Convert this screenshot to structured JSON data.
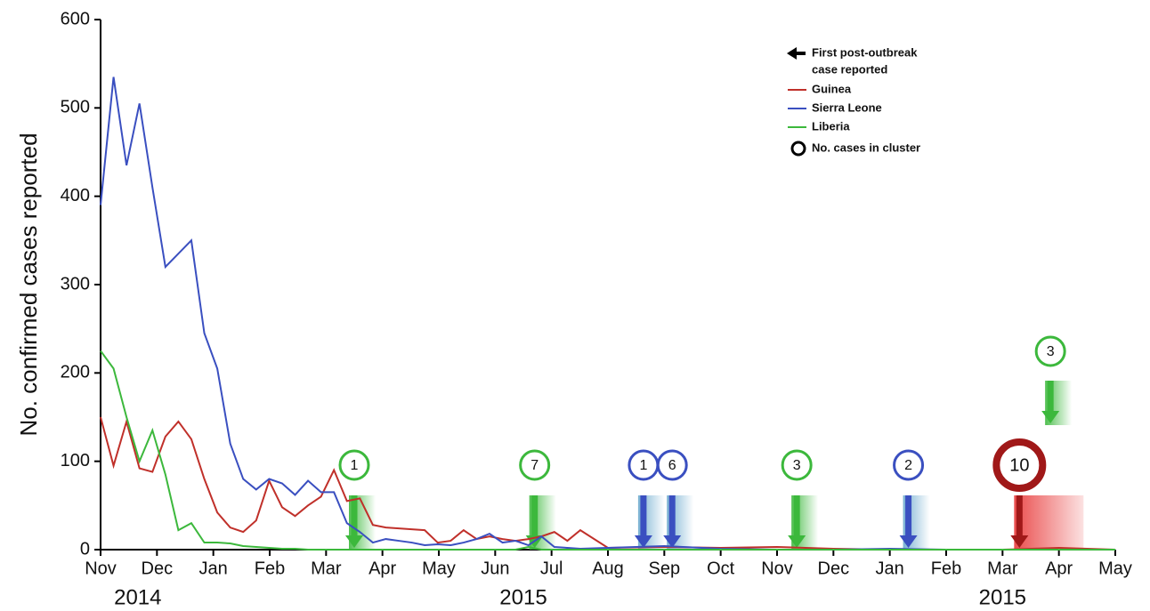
{
  "chart_data": {
    "type": "line",
    "ylabel": "No. confirmed cases reported",
    "ylim": [
      0,
      600
    ],
    "yticks": [
      0,
      100,
      200,
      300,
      400,
      500,
      600
    ],
    "xlim": [
      0,
      18
    ],
    "xticks": [
      {
        "value": 0,
        "label": "Nov"
      },
      {
        "value": 1,
        "label": "Dec"
      },
      {
        "value": 2,
        "label": "Jan"
      },
      {
        "value": 3,
        "label": "Feb"
      },
      {
        "value": 4,
        "label": "Mar"
      },
      {
        "value": 5,
        "label": "Apr"
      },
      {
        "value": 6,
        "label": "May"
      },
      {
        "value": 7,
        "label": "Jun"
      },
      {
        "value": 8,
        "label": "Jul"
      },
      {
        "value": 9,
        "label": "Aug"
      },
      {
        "value": 10,
        "label": "Sep"
      },
      {
        "value": 11,
        "label": "Oct"
      },
      {
        "value": 12,
        "label": "Nov"
      },
      {
        "value": 13,
        "label": "Dec"
      },
      {
        "value": 14,
        "label": "Jan"
      },
      {
        "value": 15,
        "label": "Feb"
      },
      {
        "value": 16,
        "label": "Mar"
      },
      {
        "value": 17,
        "label": "Apr"
      },
      {
        "value": 18,
        "label": "May"
      }
    ],
    "year_labels": [
      {
        "value": 0.66,
        "label": "2014"
      },
      {
        "value": 7.5,
        "label": "2015"
      },
      {
        "value": 16.0,
        "label": "2015"
      }
    ],
    "x": [
      0,
      0.23,
      0.46,
      0.69,
      0.92,
      1.15,
      1.38,
      1.61,
      1.84,
      2.07,
      2.3,
      2.53,
      2.76,
      2.99,
      3.22,
      3.45,
      3.68,
      3.91,
      4.14,
      4.37,
      4.6,
      4.83,
      5.06,
      5.29,
      5.52,
      5.75,
      5.98,
      6.21,
      6.44,
      6.67,
      6.9,
      7.13,
      7.36,
      7.59,
      7.82,
      8.05,
      8.28,
      8.51,
      9,
      10,
      11,
      12,
      13,
      14,
      15,
      16,
      17,
      18
    ],
    "series": [
      {
        "name": "Guinea",
        "color": "#c0302a",
        "values": [
          150,
          95,
          145,
          92,
          88,
          128,
          145,
          125,
          80,
          42,
          25,
          20,
          33,
          78,
          48,
          38,
          50,
          60,
          90,
          55,
          58,
          28,
          25,
          24,
          23,
          22,
          8,
          10,
          22,
          12,
          15,
          12,
          10,
          12,
          15,
          20,
          10,
          22,
          2,
          3,
          2,
          3,
          1,
          0,
          0,
          0,
          2,
          0
        ]
      },
      {
        "name": "Sierra Leone",
        "color": "#3a4fc0",
        "values": [
          390,
          535,
          435,
          505,
          410,
          320,
          335,
          350,
          245,
          205,
          120,
          80,
          68,
          80,
          75,
          62,
          78,
          65,
          65,
          30,
          20,
          8,
          12,
          10,
          8,
          5,
          6,
          5,
          8,
          12,
          18,
          8,
          10,
          5,
          15,
          3,
          2,
          1,
          2,
          4,
          1,
          0,
          0,
          1,
          0,
          0,
          0,
          0
        ]
      },
      {
        "name": "Liberia",
        "color": "#3cb83c",
        "values": [
          225,
          205,
          150,
          100,
          135,
          85,
          22,
          30,
          8,
          8,
          7,
          4,
          3,
          2,
          1,
          1,
          0,
          0,
          0,
          0,
          0,
          0,
          0,
          0,
          0,
          0,
          0,
          0,
          0,
          0,
          0,
          0,
          0,
          3,
          0,
          0,
          0,
          0,
          0,
          0,
          0,
          0,
          0,
          0,
          0,
          0,
          0,
          0
        ]
      }
    ],
    "legend_arrow_label": [
      "First post-outbreak",
      "case reported"
    ],
    "legend_circle_label": "No. cases in cluster",
    "annotations": [
      {
        "x": 4.5,
        "label": 1,
        "series": 2
      },
      {
        "x": 7.7,
        "label": 7,
        "series": 2
      },
      {
        "x": 9.63,
        "label": 1,
        "series": 1
      },
      {
        "x": 10.14,
        "label": 6,
        "series": 1
      },
      {
        "x": 12.35,
        "label": 3,
        "series": 2
      },
      {
        "x": 14.33,
        "label": 2,
        "series": 1
      },
      {
        "x": 16.3,
        "label": 10,
        "series": 0
      },
      {
        "x": 16.85,
        "label": 3,
        "series": 2
      }
    ]
  }
}
